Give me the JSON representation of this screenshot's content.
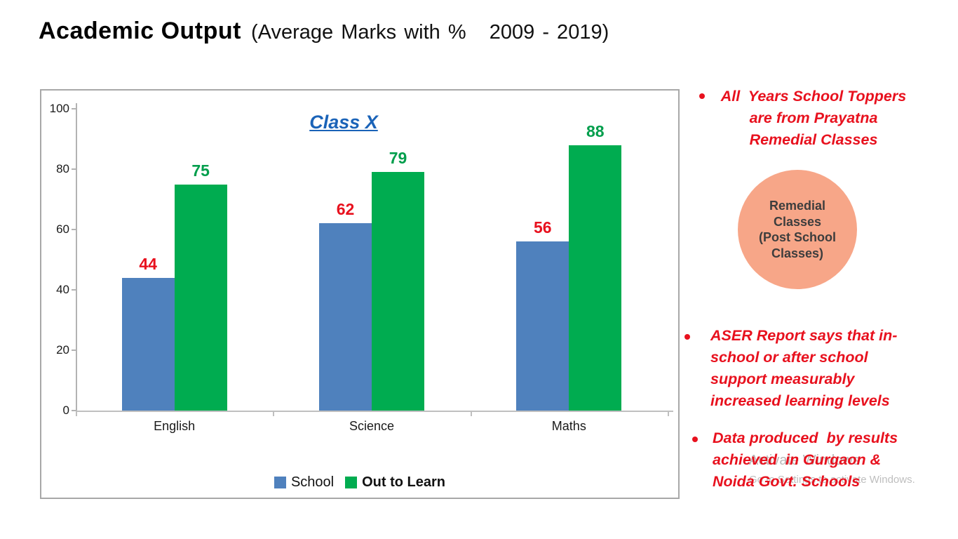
{
  "slide_title": {
    "main": "Academic Output",
    "subtitle": "(Average Marks with %   2009 - 2019)"
  },
  "chart_data": {
    "type": "bar",
    "title": "Class X",
    "categories": [
      "English",
      "Science",
      "Maths"
    ],
    "series": [
      {
        "name": "School",
        "values": [
          44,
          62,
          56
        ],
        "bar_color": "#4f81bd",
        "label_color": "#e8111e",
        "legend_bold": false
      },
      {
        "name": "Out to Learn",
        "values": [
          75,
          79,
          88
        ],
        "bar_color": "#00ac50",
        "label_color": "#009e4c",
        "legend_bold": true
      }
    ],
    "ylim": [
      0,
      100
    ],
    "yticks": [
      0,
      20,
      40,
      60,
      80,
      100
    ],
    "grid": false,
    "data_labels": true,
    "legend_position": "bottom-center"
  },
  "notes": {
    "text_color": "#e8111e",
    "bullet1_lines": [
      "All  Years School Toppers",
      "are from Prayatna",
      "Remedial Classes"
    ],
    "bullet2_lines": [
      "ASER Report says that in-",
      "school or after school",
      "support measurably",
      "increased learning levels"
    ],
    "bullet3_lines": [
      "Data produced  by results",
      "achieved  in Gurgaon &",
      "Noida Govt. Schools"
    ]
  },
  "circle": {
    "fill": "#f7a688",
    "lines": [
      "Remedial",
      "Classes",
      "(Post School",
      "Classes)"
    ]
  },
  "watermark": {
    "line1": "Activate Windows",
    "line2": "Go to Settings to activate Windows."
  }
}
